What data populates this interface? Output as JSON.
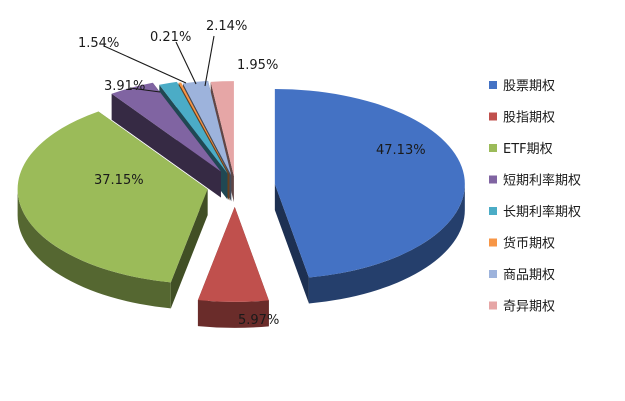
{
  "chart_data": {
    "type": "pie",
    "style": "3d-exploded",
    "categories": [
      "股票期权",
      "股指期权",
      "ETF期权",
      "短期利率期权",
      "长期利率期权",
      "货币期权",
      "商品期权",
      "奇异期权"
    ],
    "values": [
      47.13,
      5.97,
      37.15,
      3.91,
      1.54,
      0.21,
      2.14,
      1.95
    ],
    "value_labels": [
      "47.13%",
      "5.97%",
      "37.15%",
      "3.91%",
      "1.54%",
      "0.21%",
      "2.14%",
      "1.95%"
    ],
    "colors": [
      "#4472C4",
      "#C0504D",
      "#9BBB59",
      "#8064A2",
      "#4BACC6",
      "#F79646",
      "#9DB3DC",
      "#E6A6A6"
    ],
    "legend_position": "right",
    "title": ""
  }
}
